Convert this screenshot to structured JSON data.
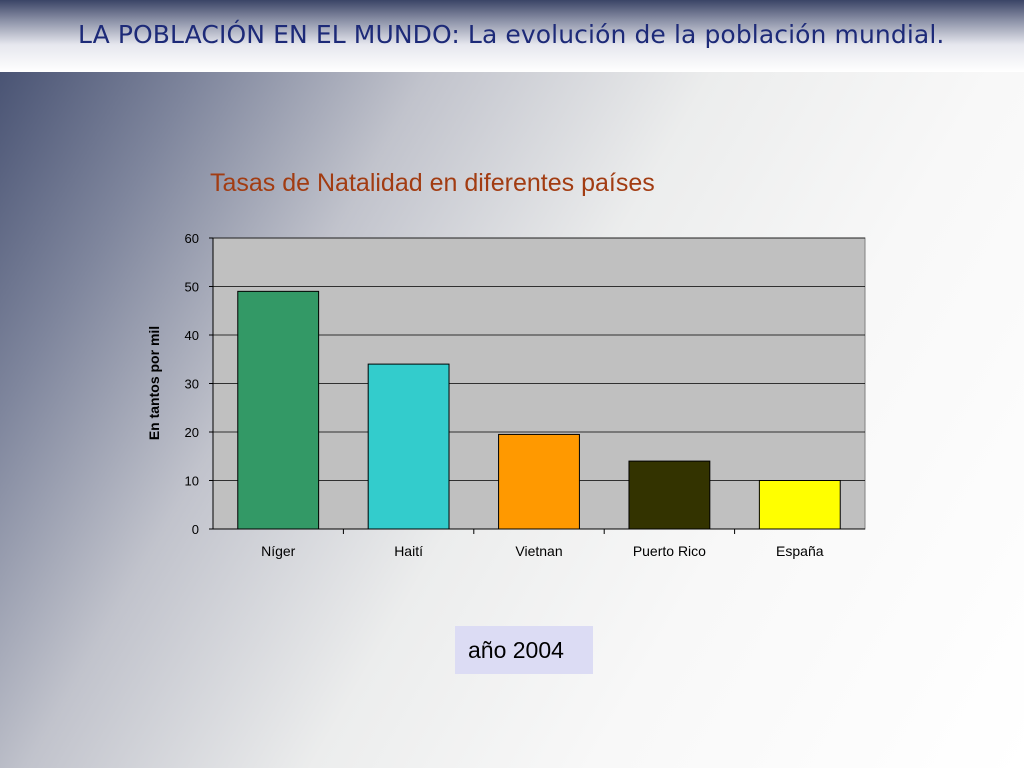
{
  "slide": {
    "title": "LA POBLACIÓN EN EL MUNDO: La evolución de la población mundial."
  },
  "chart_data": {
    "type": "bar",
    "title": "Tasas de Natalidad en diferentes países",
    "xlabel": "",
    "ylabel": "En tantos por mil",
    "categories": [
      "Níger",
      "Haití",
      "Vietnan",
      "Puerto Rico",
      "España"
    ],
    "values": [
      49,
      34,
      19.5,
      14,
      10
    ],
    "colors": [
      "#339966",
      "#33cccc",
      "#ff9900",
      "#333300",
      "#ffff00"
    ],
    "ylim": [
      0,
      60
    ],
    "yticks": [
      0,
      10,
      20,
      30,
      40,
      50,
      60
    ],
    "grid": true,
    "plot_background": "#c0c0c0"
  },
  "annotation": {
    "year_label": "año 2004"
  }
}
